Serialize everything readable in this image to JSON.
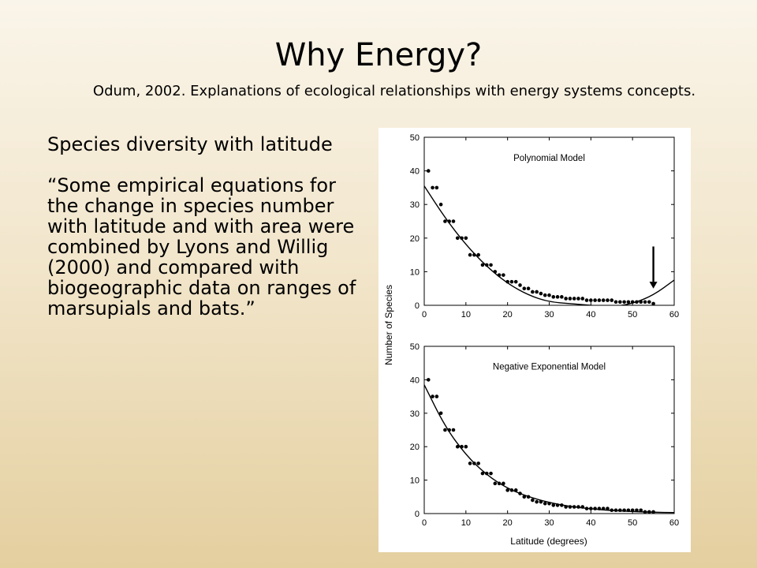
{
  "slide": {
    "title": "Why Energy?",
    "subtitle": "Odum, 2002.  Explanations of ecological relationships with energy systems concepts.",
    "body": {
      "heading": "Species diversity with latitude",
      "quote": "“Some empirical equations for the change in species number with latitude and with area were combined by Lyons and Willig (2000) and compared with biogeographic data on ranges of marsupials and bats.”"
    }
  },
  "chart_data": [
    {
      "type": "scatter",
      "title": "Polynomial Model",
      "xlabel": "",
      "ylabel": "Number of Species",
      "xlim": [
        0,
        60
      ],
      "ylim": [
        0,
        50
      ],
      "xticks": [
        0,
        10,
        20,
        30,
        40,
        50,
        60
      ],
      "yticks": [
        0,
        10,
        20,
        30,
        40,
        50
      ],
      "annotation": "arrow-down-at-55",
      "points": {
        "x": [
          1,
          2,
          3,
          4,
          5,
          6,
          7,
          8,
          9,
          10,
          11,
          12,
          13,
          14,
          15,
          16,
          17,
          18,
          19,
          20,
          21,
          22,
          23,
          24,
          25,
          26,
          27,
          28,
          29,
          30,
          31,
          32,
          33,
          34,
          35,
          36,
          37,
          38,
          39,
          40,
          41,
          42,
          43,
          44,
          45,
          46,
          47,
          48,
          49,
          50,
          51,
          52,
          53,
          54,
          55
        ],
        "y": [
          40,
          35,
          35,
          30,
          25,
          25,
          25,
          20,
          20,
          20,
          15,
          15,
          15,
          12,
          12,
          12,
          10,
          9,
          9,
          7,
          7,
          7,
          6,
          5,
          5,
          4,
          4,
          3.5,
          3,
          3,
          2.5,
          2.5,
          2.5,
          2,
          2,
          2,
          2,
          2,
          1.5,
          1.5,
          1.5,
          1.5,
          1.5,
          1.5,
          1.5,
          1,
          1,
          1,
          1,
          1,
          1,
          1,
          1,
          1,
          0.5
        ]
      },
      "model": {
        "x": [
          0,
          5,
          10,
          15,
          20,
          25,
          30,
          35,
          40,
          45,
          50,
          55,
          60
        ],
        "y": [
          35.5,
          26,
          18,
          11.5,
          6.5,
          3,
          1,
          0.5,
          0,
          -0.5,
          0.5,
          3,
          7.5
        ]
      }
    },
    {
      "type": "scatter",
      "title": "Negative Exponential Model",
      "xlabel": "Latitude (degrees)",
      "ylabel": "Number of Species",
      "xlim": [
        0,
        60
      ],
      "ylim": [
        0,
        50
      ],
      "xticks": [
        0,
        10,
        20,
        30,
        40,
        50,
        60
      ],
      "yticks": [
        0,
        10,
        20,
        30,
        40,
        50
      ],
      "points": {
        "x": [
          1,
          2,
          3,
          4,
          5,
          6,
          7,
          8,
          9,
          10,
          11,
          12,
          13,
          14,
          15,
          16,
          17,
          18,
          19,
          20,
          21,
          22,
          23,
          24,
          25,
          26,
          27,
          28,
          29,
          30,
          31,
          32,
          33,
          34,
          35,
          36,
          37,
          38,
          39,
          40,
          41,
          42,
          43,
          44,
          45,
          46,
          47,
          48,
          49,
          50,
          51,
          52,
          53,
          54,
          55
        ],
        "y": [
          40,
          35,
          35,
          30,
          25,
          25,
          25,
          20,
          20,
          20,
          15,
          15,
          15,
          12,
          12,
          12,
          9,
          9,
          9,
          7,
          7,
          7,
          6,
          5,
          5,
          4,
          3.5,
          3.5,
          3,
          3,
          2.5,
          2.5,
          2.5,
          2,
          2,
          2,
          2,
          2,
          1.5,
          1.5,
          1.5,
          1.5,
          1.5,
          1.5,
          1,
          1,
          1,
          1,
          1,
          1,
          1,
          1,
          0.5,
          0.5,
          0.5
        ]
      },
      "model": {
        "x": [
          0,
          5,
          10,
          15,
          20,
          25,
          30,
          35,
          40,
          45,
          50,
          55,
          60
        ],
        "y": [
          38.5,
          26,
          17.5,
          11.5,
          7.5,
          5,
          3.3,
          2.1,
          1.4,
          0.9,
          0.6,
          0.4,
          0.3
        ]
      }
    }
  ]
}
